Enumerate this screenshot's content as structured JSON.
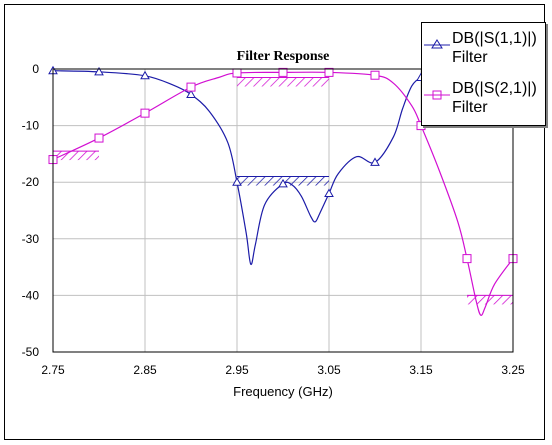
{
  "chart_data": {
    "type": "line",
    "title": "Filter Response",
    "xlabel": "Frequency (GHz)",
    "ylabel": "",
    "xlim": [
      2.75,
      3.25
    ],
    "ylim": [
      -50,
      0
    ],
    "xticks": [
      "2.75",
      "2.85",
      "2.95",
      "3.05",
      "3.15",
      "3.25"
    ],
    "yticks": [
      "0",
      "-10",
      "-20",
      "-30",
      "-40",
      "-50"
    ],
    "grid": true,
    "legend_position": "top-right",
    "series": [
      {
        "name": "DB(|S(1,1)|)",
        "subname": "Filter",
        "color": "#1c1ca8",
        "marker": "triangle",
        "x": [
          2.75,
          2.8,
          2.85,
          2.88,
          2.9,
          2.92,
          2.94,
          2.95,
          2.96,
          2.965,
          2.97,
          2.98,
          3.0,
          3.01,
          3.02,
          3.03,
          3.035,
          3.04,
          3.05,
          3.06,
          3.08,
          3.1,
          3.12,
          3.13,
          3.14,
          3.15,
          3.16,
          3.17,
          3.18
        ],
        "y": [
          -0.3,
          -0.5,
          -1.2,
          -2.8,
          -4.5,
          -7.5,
          -13,
          -20,
          -29,
          -34.5,
          -31,
          -24,
          -20.3,
          -20.5,
          -22.5,
          -26,
          -27,
          -25.5,
          -22,
          -18.5,
          -15.5,
          -16.5,
          -12,
          -7,
          -3,
          -1.5,
          -1.0,
          -0.8,
          -0.6
        ],
        "marker_x": [
          2.75,
          2.8,
          2.85,
          2.9,
          2.95,
          3.0,
          3.05,
          3.1,
          3.15
        ],
        "marker_y": [
          -0.3,
          -0.5,
          -1.2,
          -4.5,
          -20,
          -20.3,
          -22,
          -16.5,
          -1.5
        ]
      },
      {
        "name": "DB(|S(2,1)|)",
        "subname": "Filter",
        "color": "#d20fd2",
        "marker": "square",
        "x": [
          2.75,
          2.8,
          2.85,
          2.9,
          2.93,
          2.95,
          3.0,
          3.05,
          3.1,
          3.12,
          3.14,
          3.15,
          3.17,
          3.19,
          3.2,
          3.21,
          3.215,
          3.22,
          3.23,
          3.25
        ],
        "y": [
          -16,
          -12.2,
          -7.8,
          -3.2,
          -1.5,
          -0.7,
          -0.6,
          -0.6,
          -1.1,
          -2.5,
          -6.5,
          -10,
          -18,
          -27,
          -33.5,
          -41,
          -43.5,
          -42,
          -38,
          -33.5
        ],
        "marker_x": [
          2.75,
          2.8,
          2.85,
          2.9,
          2.95,
          3.0,
          3.05,
          3.1,
          3.15,
          3.2,
          3.25
        ],
        "marker_y": [
          -16,
          -12.2,
          -7.8,
          -3.2,
          -0.7,
          -0.6,
          -0.6,
          -1.1,
          -10,
          -33.5,
          -33.5
        ]
      }
    ],
    "goals": [
      {
        "series": 1,
        "x": [
          2.75,
          2.8
        ],
        "y": -14.5
      },
      {
        "series": 1,
        "x": [
          2.95,
          3.05
        ],
        "y": -1.5
      },
      {
        "series": 1,
        "x": [
          3.2,
          3.25
        ],
        "y": -40
      },
      {
        "series": 0,
        "x": [
          2.95,
          3.05
        ],
        "y": -19
      }
    ]
  }
}
